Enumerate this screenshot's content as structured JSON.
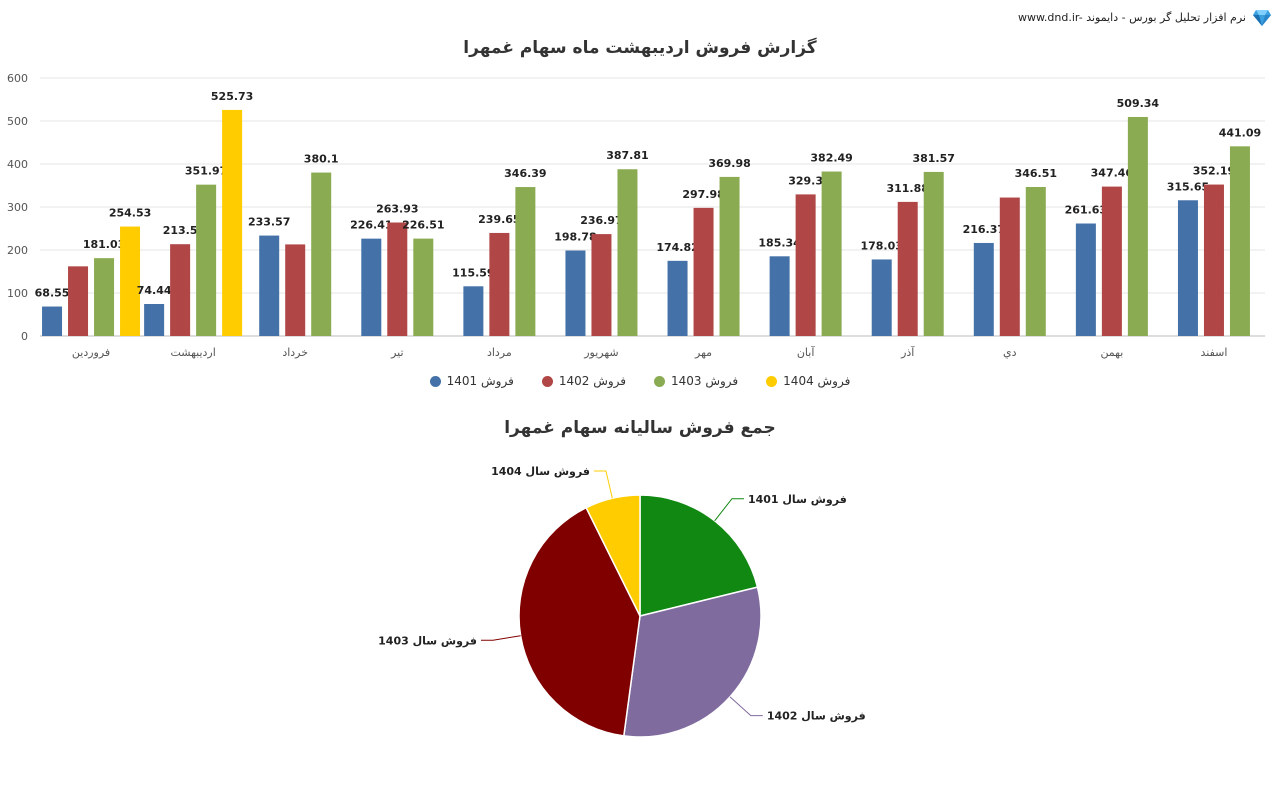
{
  "brand": {
    "text": "www.dnd.ir- نرم افزار تحلیل گر بورس - دایموند",
    "logo_icon": "diamond-icon"
  },
  "colors": {
    "s1401": "#4472a8",
    "s1402": "#b04645",
    "s1403": "#8aab52",
    "s1404": "#ffcc00",
    "p1401": "#118811",
    "p1402": "#7f6b9e",
    "p1403": "#800000",
    "p1404": "#ffcc00"
  },
  "chart_data": [
    {
      "type": "bar",
      "title": "گزارش فروش اردیبهشت ماه سهام غمهرا",
      "categories": [
        "فروردین",
        "اردیبهشت",
        "خرداد",
        "تیر",
        "مرداد",
        "شهریور",
        "مهر",
        "آبان",
        "آذر",
        "دي",
        "بهمن",
        "اسفند"
      ],
      "ylim": [
        0,
        600
      ],
      "yticks": [
        0,
        100,
        200,
        300,
        400,
        500,
        600
      ],
      "grid": true,
      "legend_position": "bottom",
      "series": [
        {
          "name": "فروش 1401",
          "values": [
            68.55,
            74.44,
            233.57,
            226.41,
            115.59,
            198.78,
            174.82,
            185.34,
            178.03,
            216.37,
            261.63,
            315.65
          ],
          "labels": [
            "68.55",
            "74.44",
            "233.57",
            "226.41",
            "115.59",
            "198.78",
            "174.82",
            "185.34",
            "178.03",
            "216.37",
            "261.63",
            "315.65"
          ]
        },
        {
          "name": "فروش 1402",
          "values": [
            162,
            213.5,
            213,
            263.93,
            239.65,
            236.97,
            297.98,
            329.3,
            311.88,
            322,
            347.46,
            352.19
          ],
          "labels": [
            "",
            "213.5",
            "",
            "263.93",
            "239.65",
            "236.97",
            "297.98",
            "329.3",
            "311.88",
            "",
            "347.46",
            "352.19"
          ]
        },
        {
          "name": "فروش 1403",
          "values": [
            181.03,
            351.97,
            380.1,
            226.51,
            346.39,
            387.81,
            369.98,
            382.49,
            381.57,
            346.51,
            509.34,
            441.09
          ],
          "labels": [
            "181.03",
            "351.97",
            "380.1",
            "226.51",
            "346.39",
            "387.81",
            "369.98",
            "382.49",
            "381.57",
            "346.51",
            "509.34",
            "441.09"
          ]
        },
        {
          "name": "فروش 1404",
          "values": [
            254.53,
            525.73,
            null,
            null,
            null,
            null,
            null,
            null,
            null,
            null,
            null,
            null
          ],
          "labels": [
            "254.53",
            "525.73",
            "",
            "",
            "",
            "",
            "",
            "",
            "",
            "",
            "",
            ""
          ]
        }
      ]
    },
    {
      "type": "pie",
      "title": "جمع فروش سالیانه سهام غمهرا",
      "slices": [
        {
          "label": "فروش سال 1401",
          "value": 2249
        },
        {
          "label": "فروش سال 1402",
          "value": 3290
        },
        {
          "label": "فروش سال 1403",
          "value": 4305
        },
        {
          "label": "فروش سال 1404",
          "value": 780
        }
      ]
    }
  ]
}
